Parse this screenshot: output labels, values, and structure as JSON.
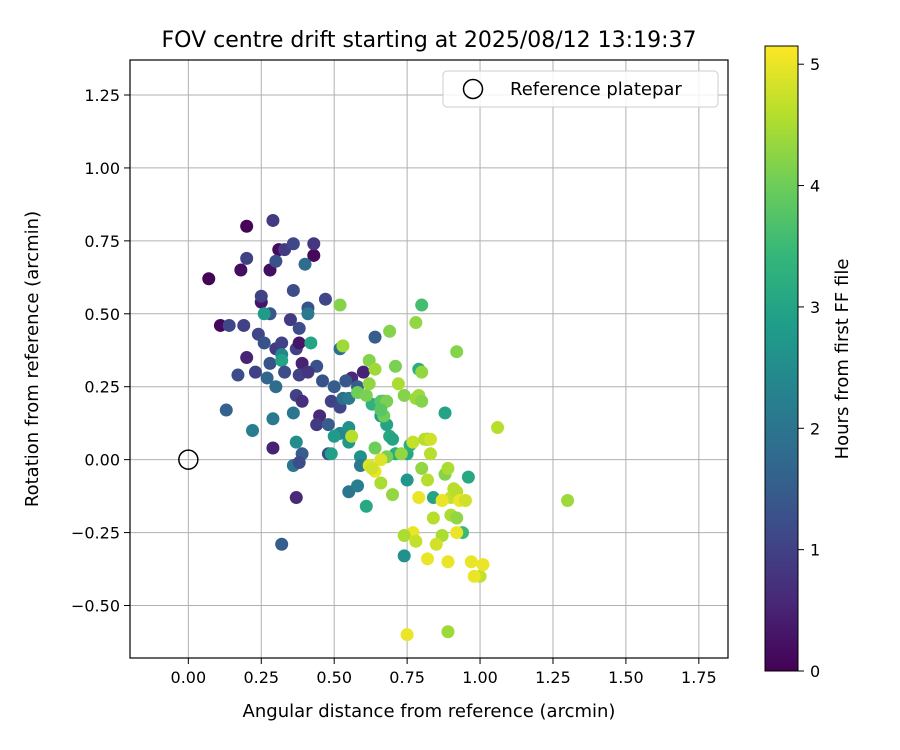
{
  "chart_data": {
    "type": "scatter",
    "title": "FOV centre drift starting at 2025/08/12 13:19:37",
    "xlabel": "Angular distance from reference (arcmin)",
    "ylabel": "Rotation from reference (arcmin)",
    "xlim": [
      -0.2,
      1.85
    ],
    "ylim": [
      -0.68,
      1.37
    ],
    "x_ticks": [
      0.0,
      0.25,
      0.5,
      0.75,
      1.0,
      1.25,
      1.5,
      1.75
    ],
    "x_tick_labels": [
      "0.00",
      "0.25",
      "0.50",
      "0.75",
      "1.00",
      "1.25",
      "1.50",
      "1.75"
    ],
    "y_ticks": [
      -0.5,
      -0.25,
      0.0,
      0.25,
      0.5,
      0.75,
      1.0,
      1.25
    ],
    "y_tick_labels": [
      "−0.50",
      "−0.25",
      "0.00",
      "0.25",
      "0.50",
      "0.75",
      "1.00",
      "1.25"
    ],
    "grid": true,
    "legend": {
      "placement": "top-right",
      "entries": [
        "Reference platepar"
      ]
    },
    "reference_point": {
      "x": 0.0,
      "y": 0.0,
      "label": "Reference platepar"
    },
    "colorbar": {
      "label": "Hours from first FF file",
      "min": 0,
      "max": 5.15,
      "ticks": [
        0,
        1,
        2,
        3,
        4,
        5
      ],
      "colormap": "viridis"
    },
    "points": [
      {
        "x": 0.07,
        "y": 0.62,
        "h": 0.05
      },
      {
        "x": 0.11,
        "y": 0.46,
        "h": 0.1
      },
      {
        "x": 0.2,
        "y": 0.8,
        "h": 0.05
      },
      {
        "x": 0.18,
        "y": 0.65,
        "h": 0.2
      },
      {
        "x": 0.28,
        "y": 0.65,
        "h": 0.2
      },
      {
        "x": 0.31,
        "y": 0.72,
        "h": 0.15
      },
      {
        "x": 0.43,
        "y": 0.7,
        "h": 0.1
      },
      {
        "x": 0.25,
        "y": 0.54,
        "h": 0.3
      },
      {
        "x": 0.29,
        "y": 0.82,
        "h": 0.9
      },
      {
        "x": 0.2,
        "y": 0.69,
        "h": 1.0
      },
      {
        "x": 0.33,
        "y": 0.72,
        "h": 0.9
      },
      {
        "x": 0.36,
        "y": 0.74,
        "h": 1.1
      },
      {
        "x": 0.43,
        "y": 0.74,
        "h": 0.8
      },
      {
        "x": 0.3,
        "y": 0.68,
        "h": 1.3
      },
      {
        "x": 0.4,
        "y": 0.67,
        "h": 1.8
      },
      {
        "x": 0.25,
        "y": 0.56,
        "h": 1.0
      },
      {
        "x": 0.36,
        "y": 0.58,
        "h": 1.2
      },
      {
        "x": 0.47,
        "y": 0.55,
        "h": 1.1
      },
      {
        "x": 0.14,
        "y": 0.46,
        "h": 1.1
      },
      {
        "x": 0.19,
        "y": 0.46,
        "h": 1.0
      },
      {
        "x": 0.28,
        "y": 0.5,
        "h": 1.4
      },
      {
        "x": 0.35,
        "y": 0.48,
        "h": 0.9
      },
      {
        "x": 0.38,
        "y": 0.45,
        "h": 1.2
      },
      {
        "x": 0.41,
        "y": 0.52,
        "h": 1.3
      },
      {
        "x": 0.41,
        "y": 0.5,
        "h": 2.1
      },
      {
        "x": 0.26,
        "y": 0.5,
        "h": 2.8
      },
      {
        "x": 0.24,
        "y": 0.43,
        "h": 1.1
      },
      {
        "x": 0.26,
        "y": 0.4,
        "h": 1.3
      },
      {
        "x": 0.3,
        "y": 0.38,
        "h": 0.9
      },
      {
        "x": 0.32,
        "y": 0.4,
        "h": 1.0
      },
      {
        "x": 0.37,
        "y": 0.38,
        "h": 1.0
      },
      {
        "x": 0.38,
        "y": 0.4,
        "h": 0.3
      },
      {
        "x": 0.42,
        "y": 0.4,
        "h": 3.0
      },
      {
        "x": 0.2,
        "y": 0.35,
        "h": 0.5
      },
      {
        "x": 0.28,
        "y": 0.33,
        "h": 1.3
      },
      {
        "x": 0.32,
        "y": 0.36,
        "h": 2.4
      },
      {
        "x": 0.32,
        "y": 0.34,
        "h": 3.0
      },
      {
        "x": 0.39,
        "y": 0.33,
        "h": 0.5
      },
      {
        "x": 0.44,
        "y": 0.32,
        "h": 1.3
      },
      {
        "x": 0.17,
        "y": 0.29,
        "h": 1.2
      },
      {
        "x": 0.23,
        "y": 0.3,
        "h": 1.0
      },
      {
        "x": 0.27,
        "y": 0.28,
        "h": 1.7
      },
      {
        "x": 0.33,
        "y": 0.3,
        "h": 1.2
      },
      {
        "x": 0.38,
        "y": 0.29,
        "h": 1.0
      },
      {
        "x": 0.41,
        "y": 0.3,
        "h": 0.8
      },
      {
        "x": 0.46,
        "y": 0.27,
        "h": 1.3
      },
      {
        "x": 0.5,
        "y": 0.25,
        "h": 1.5
      },
      {
        "x": 0.49,
        "y": 0.2,
        "h": 1.0
      },
      {
        "x": 0.13,
        "y": 0.17,
        "h": 1.6
      },
      {
        "x": 0.3,
        "y": 0.25,
        "h": 1.8
      },
      {
        "x": 0.37,
        "y": 0.22,
        "h": 1.0
      },
      {
        "x": 0.39,
        "y": 0.2,
        "h": 0.7
      },
      {
        "x": 0.45,
        "y": 0.15,
        "h": 0.6
      },
      {
        "x": 0.44,
        "y": 0.12,
        "h": 0.9
      },
      {
        "x": 0.36,
        "y": 0.16,
        "h": 2.0
      },
      {
        "x": 0.48,
        "y": 0.12,
        "h": 1.5
      },
      {
        "x": 0.22,
        "y": 0.1,
        "h": 2.2
      },
      {
        "x": 0.29,
        "y": 0.14,
        "h": 2.1
      },
      {
        "x": 0.37,
        "y": 0.06,
        "h": 2.5
      },
      {
        "x": 0.39,
        "y": 0.02,
        "h": 1.5
      },
      {
        "x": 0.29,
        "y": 0.04,
        "h": 0.5
      },
      {
        "x": 0.36,
        "y": -0.02,
        "h": 2.0
      },
      {
        "x": 0.38,
        "y": -0.01,
        "h": 1.2
      },
      {
        "x": 0.48,
        "y": 0.02,
        "h": 1.2
      },
      {
        "x": 0.37,
        "y": -0.13,
        "h": 0.6
      },
      {
        "x": 0.32,
        "y": -0.29,
        "h": 1.5
      },
      {
        "x": 0.64,
        "y": 0.42,
        "h": 1.5
      },
      {
        "x": 0.52,
        "y": 0.38,
        "h": 1.9
      },
      {
        "x": 0.56,
        "y": 0.28,
        "h": 0.6
      },
      {
        "x": 0.6,
        "y": 0.3,
        "h": 0.5
      },
      {
        "x": 0.58,
        "y": 0.25,
        "h": 1.5
      },
      {
        "x": 0.52,
        "y": 0.18,
        "h": 1.1
      },
      {
        "x": 0.53,
        "y": 0.21,
        "h": 1.9
      },
      {
        "x": 0.54,
        "y": 0.27,
        "h": 1.4
      },
      {
        "x": 0.55,
        "y": 0.21,
        "h": 2.1
      },
      {
        "x": 0.52,
        "y": 0.09,
        "h": 2.4
      },
      {
        "x": 0.55,
        "y": 0.11,
        "h": 2.6
      },
      {
        "x": 0.5,
        "y": 0.08,
        "h": 2.8
      },
      {
        "x": 0.55,
        "y": 0.06,
        "h": 2.7
      },
      {
        "x": 0.49,
        "y": 0.02,
        "h": 2.9
      },
      {
        "x": 0.59,
        "y": 0.01,
        "h": 2.6
      },
      {
        "x": 0.59,
        "y": -0.02,
        "h": 2.1
      },
      {
        "x": 0.55,
        "y": -0.11,
        "h": 2.0
      },
      {
        "x": 0.58,
        "y": -0.09,
        "h": 2.2
      },
      {
        "x": 0.61,
        "y": -0.16,
        "h": 3.1
      },
      {
        "x": 0.66,
        "y": 0.15,
        "h": 2.8
      },
      {
        "x": 0.66,
        "y": 0.18,
        "h": 3.0
      },
      {
        "x": 0.63,
        "y": 0.19,
        "h": 3.3
      },
      {
        "x": 0.67,
        "y": 0.2,
        "h": 3.2
      },
      {
        "x": 0.68,
        "y": 0.12,
        "h": 3.0
      },
      {
        "x": 0.69,
        "y": 0.08,
        "h": 3.1
      },
      {
        "x": 0.7,
        "y": 0.07,
        "h": 3.0
      },
      {
        "x": 0.71,
        "y": 0.02,
        "h": 3.2
      },
      {
        "x": 0.75,
        "y": 0.02,
        "h": 3.1
      },
      {
        "x": 0.76,
        "y": 0.05,
        "h": 3.2
      },
      {
        "x": 0.75,
        "y": -0.07,
        "h": 2.7
      },
      {
        "x": 0.74,
        "y": -0.33,
        "h": 2.6
      },
      {
        "x": 0.79,
        "y": 0.31,
        "h": 3.2
      },
      {
        "x": 0.8,
        "y": 0.53,
        "h": 3.6
      },
      {
        "x": 0.82,
        "y": 0.07,
        "h": 3.3
      },
      {
        "x": 0.84,
        "y": -0.13,
        "h": 3.0
      },
      {
        "x": 0.88,
        "y": 0.16,
        "h": 3.0
      },
      {
        "x": 0.96,
        "y": -0.06,
        "h": 3.1
      },
      {
        "x": 0.94,
        "y": -0.25,
        "h": 3.5
      },
      {
        "x": 0.52,
        "y": 0.53,
        "h": 4.2
      },
      {
        "x": 0.53,
        "y": 0.39,
        "h": 4.4
      },
      {
        "x": 0.62,
        "y": 0.34,
        "h": 4.2
      },
      {
        "x": 0.64,
        "y": 0.31,
        "h": 4.4
      },
      {
        "x": 0.69,
        "y": 0.44,
        "h": 4.2
      },
      {
        "x": 0.71,
        "y": 0.32,
        "h": 4.1
      },
      {
        "x": 0.78,
        "y": 0.47,
        "h": 4.3
      },
      {
        "x": 0.8,
        "y": 0.3,
        "h": 4.3
      },
      {
        "x": 0.92,
        "y": 0.37,
        "h": 4.2
      },
      {
        "x": 0.58,
        "y": 0.23,
        "h": 4.0
      },
      {
        "x": 0.61,
        "y": 0.22,
        "h": 4.1
      },
      {
        "x": 0.62,
        "y": 0.26,
        "h": 4.3
      },
      {
        "x": 0.66,
        "y": 0.2,
        "h": 3.8
      },
      {
        "x": 0.68,
        "y": 0.2,
        "h": 4.1
      },
      {
        "x": 0.72,
        "y": 0.26,
        "h": 4.5
      },
      {
        "x": 0.74,
        "y": 0.22,
        "h": 4.2
      },
      {
        "x": 0.78,
        "y": 0.21,
        "h": 4.4
      },
      {
        "x": 0.79,
        "y": 0.22,
        "h": 4.4
      },
      {
        "x": 0.8,
        "y": 0.2,
        "h": 4.2
      },
      {
        "x": 0.67,
        "y": 0.15,
        "h": 4.0
      },
      {
        "x": 0.66,
        "y": 0.17,
        "h": 3.8
      },
      {
        "x": 0.56,
        "y": 0.08,
        "h": 4.6
      },
      {
        "x": 0.64,
        "y": 0.04,
        "h": 4.0
      },
      {
        "x": 0.68,
        "y": 0.01,
        "h": 4.1
      },
      {
        "x": 0.73,
        "y": 0.02,
        "h": 4.3
      },
      {
        "x": 0.77,
        "y": 0.06,
        "h": 4.7
      },
      {
        "x": 0.81,
        "y": 0.07,
        "h": 4.6
      },
      {
        "x": 0.83,
        "y": 0.07,
        "h": 4.8
      },
      {
        "x": 0.83,
        "y": 0.02,
        "h": 4.6
      },
      {
        "x": 0.8,
        "y": -0.03,
        "h": 4.3
      },
      {
        "x": 0.82,
        "y": -0.07,
        "h": 4.6
      },
      {
        "x": 0.88,
        "y": -0.05,
        "h": 4.2
      },
      {
        "x": 0.89,
        "y": -0.03,
        "h": 4.5
      },
      {
        "x": 0.91,
        "y": -0.1,
        "h": 4.6
      },
      {
        "x": 0.9,
        "y": -0.13,
        "h": 4.7
      },
      {
        "x": 0.92,
        "y": -0.11,
        "h": 4.6
      },
      {
        "x": 0.93,
        "y": -0.14,
        "h": 5.0
      },
      {
        "x": 0.95,
        "y": -0.14,
        "h": 4.8
      },
      {
        "x": 0.9,
        "y": -0.19,
        "h": 4.5
      },
      {
        "x": 0.92,
        "y": -0.2,
        "h": 4.3
      },
      {
        "x": 0.87,
        "y": -0.26,
        "h": 4.5
      },
      {
        "x": 0.85,
        "y": -0.29,
        "h": 4.8
      },
      {
        "x": 0.84,
        "y": -0.2,
        "h": 4.6
      },
      {
        "x": 0.79,
        "y": -0.13,
        "h": 5.0
      },
      {
        "x": 0.87,
        "y": -0.14,
        "h": 5.0
      },
      {
        "x": 0.92,
        "y": -0.25,
        "h": 5.0
      },
      {
        "x": 0.77,
        "y": -0.25,
        "h": 5.0
      },
      {
        "x": 0.74,
        "y": -0.26,
        "h": 4.5
      },
      {
        "x": 0.78,
        "y": -0.28,
        "h": 4.7
      },
      {
        "x": 0.82,
        "y": -0.34,
        "h": 5.0
      },
      {
        "x": 0.89,
        "y": -0.35,
        "h": 5.0
      },
      {
        "x": 0.97,
        "y": -0.35,
        "h": 5.0
      },
      {
        "x": 1.0,
        "y": -0.4,
        "h": 4.7
      },
      {
        "x": 0.98,
        "y": -0.4,
        "h": 5.0
      },
      {
        "x": 1.01,
        "y": -0.36,
        "h": 5.0
      },
      {
        "x": 1.06,
        "y": 0.11,
        "h": 4.6
      },
      {
        "x": 1.3,
        "y": -0.14,
        "h": 4.4
      },
      {
        "x": 0.75,
        "y": -0.6,
        "h": 5.0
      },
      {
        "x": 0.89,
        "y": -0.59,
        "h": 4.4
      },
      {
        "x": 0.7,
        "y": -0.12,
        "h": 4.3
      },
      {
        "x": 0.66,
        "y": -0.08,
        "h": 4.5
      },
      {
        "x": 0.62,
        "y": -0.02,
        "h": 4.9
      },
      {
        "x": 0.64,
        "y": -0.04,
        "h": 5.0
      },
      {
        "x": 0.66,
        "y": 0.0,
        "h": 4.9
      },
      {
        "x": 0.63,
        "y": -0.03,
        "h": 4.8
      }
    ]
  }
}
